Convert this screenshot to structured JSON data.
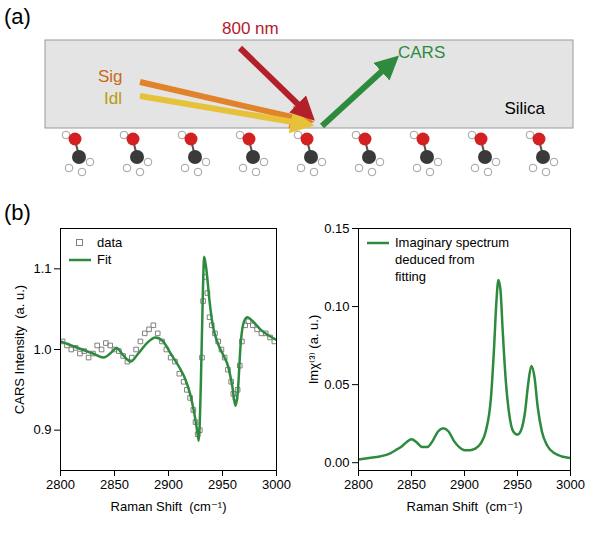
{
  "panel_a": {
    "label": "(a)",
    "beams": {
      "signal": "Sig",
      "idler": "Idl",
      "pump": "800 nm",
      "output": "CARS"
    },
    "medium": "Silica"
  },
  "panel_b": {
    "label": "(b)"
  },
  "chart_data": [
    {
      "type": "line",
      "x_label": "Raman Shift  (cm⁻¹)",
      "y_label": "CARS Intensity  (a. u.)",
      "xlim": [
        2800,
        3000
      ],
      "xticks": [
        2800,
        2850,
        2900,
        2950,
        3000
      ],
      "ylim": [
        0.85,
        1.15
      ],
      "yticks": [
        0.9,
        {
          "value": 1.0,
          "label": "1.0"
        },
        1.1
      ],
      "legend": "upper left",
      "series": [
        {
          "name": "data",
          "type": "scatter",
          "marker": "square",
          "color": "#808080",
          "x": [
            2802,
            2806,
            2810,
            2814,
            2818,
            2822,
            2826,
            2830,
            2834,
            2838,
            2842,
            2846,
            2850,
            2854,
            2858,
            2862,
            2866,
            2870,
            2874,
            2878,
            2882,
            2886,
            2890,
            2894,
            2898,
            2902,
            2906,
            2910,
            2914,
            2917,
            2920,
            2923,
            2925,
            2927,
            2929,
            2931,
            2932,
            2934,
            2936,
            2938,
            2940,
            2943,
            2946,
            2949,
            2952,
            2955,
            2958,
            2960,
            2962,
            2964,
            2966,
            2968,
            2971,
            2974,
            2978,
            2982,
            2986,
            2990,
            2994,
            2998
          ],
          "values": [
            1.01,
            1.005,
            1.0,
            1.002,
            0.995,
            0.998,
            0.99,
            0.995,
            1.005,
            1.0,
            1.008,
            1.005,
            1.0,
            0.998,
            0.992,
            0.985,
            0.99,
            1.0,
            1.01,
            1.02,
            1.025,
            1.03,
            1.02,
            1.01,
            1.0,
            0.99,
            0.985,
            0.97,
            0.96,
            0.95,
            0.94,
            0.925,
            0.91,
            0.895,
            0.9,
            0.99,
            1.06,
            1.09,
            1.07,
            1.04,
            1.03,
            1.02,
            1.01,
            1.0,
            0.99,
            0.975,
            0.96,
            0.945,
            0.94,
            0.95,
            0.98,
            1.01,
            1.03,
            1.035,
            1.03,
            1.025,
            1.02,
            1.02,
            1.015,
            1.01
          ]
        },
        {
          "name": "Fit",
          "type": "line",
          "line_style": "solid",
          "color": "#2e8b3e",
          "x": [
            2800,
            2810,
            2820,
            2830,
            2840,
            2846,
            2852,
            2858,
            2865,
            2872,
            2880,
            2888,
            2895,
            2902,
            2910,
            2915,
            2920,
            2924,
            2927,
            2928,
            2930,
            2932,
            2933,
            2935,
            2938,
            2941,
            2945,
            2950,
            2955,
            2959,
            2962,
            2964,
            2967,
            2970,
            2973,
            2978,
            2985,
            2992,
            3000
          ],
          "values": [
            1.01,
            1.005,
            1.0,
            0.995,
            0.99,
            0.995,
            1.002,
            0.993,
            0.985,
            0.995,
            1.008,
            1.015,
            1.01,
            0.995,
            0.978,
            0.965,
            0.945,
            0.92,
            0.895,
            0.887,
            0.96,
            1.08,
            1.115,
            1.1,
            1.06,
            1.03,
            1.01,
            0.995,
            0.98,
            0.955,
            0.93,
            0.945,
            1.01,
            1.035,
            1.04,
            1.035,
            1.025,
            1.018,
            1.012
          ]
        }
      ]
    },
    {
      "type": "line",
      "x_label": "Raman Shift  (cm⁻¹)",
      "y_label": "Imχ⁽³⁾ (a. u.)",
      "xlim": [
        2800,
        3000
      ],
      "xticks": [
        2800,
        2850,
        2900,
        2950,
        3000
      ],
      "ylim": [
        -0.005,
        0.15
      ],
      "yticks": [
        {
          "value": 0,
          "label": "0.00"
        },
        0.05,
        {
          "value": 0.1,
          "label": "0.10"
        },
        0.15
      ],
      "legend": "upper left",
      "series": [
        {
          "name": "Imaginary spectrum deduced from fitting",
          "type": "line",
          "line_style": "solid",
          "color": "#2e8b3e",
          "x": [
            2800,
            2810,
            2820,
            2830,
            2835,
            2840,
            2845,
            2850,
            2855,
            2860,
            2865,
            2870,
            2875,
            2880,
            2885,
            2890,
            2895,
            2900,
            2905,
            2910,
            2915,
            2920,
            2925,
            2928,
            2930,
            2932,
            2934,
            2936,
            2939,
            2942,
            2946,
            2950,
            2954,
            2957,
            2960,
            2963,
            2966,
            2969,
            2973,
            2978,
            2985,
            2992,
            3000
          ],
          "values": [
            0.002,
            0.003,
            0.004,
            0.006,
            0.008,
            0.01,
            0.013,
            0.015,
            0.013,
            0.01,
            0.01,
            0.014,
            0.02,
            0.022,
            0.02,
            0.014,
            0.01,
            0.008,
            0.008,
            0.009,
            0.012,
            0.02,
            0.042,
            0.075,
            0.102,
            0.117,
            0.11,
            0.085,
            0.052,
            0.032,
            0.02,
            0.018,
            0.022,
            0.032,
            0.05,
            0.062,
            0.055,
            0.036,
            0.02,
            0.011,
            0.006,
            0.004,
            0.003
          ]
        }
      ]
    }
  ]
}
